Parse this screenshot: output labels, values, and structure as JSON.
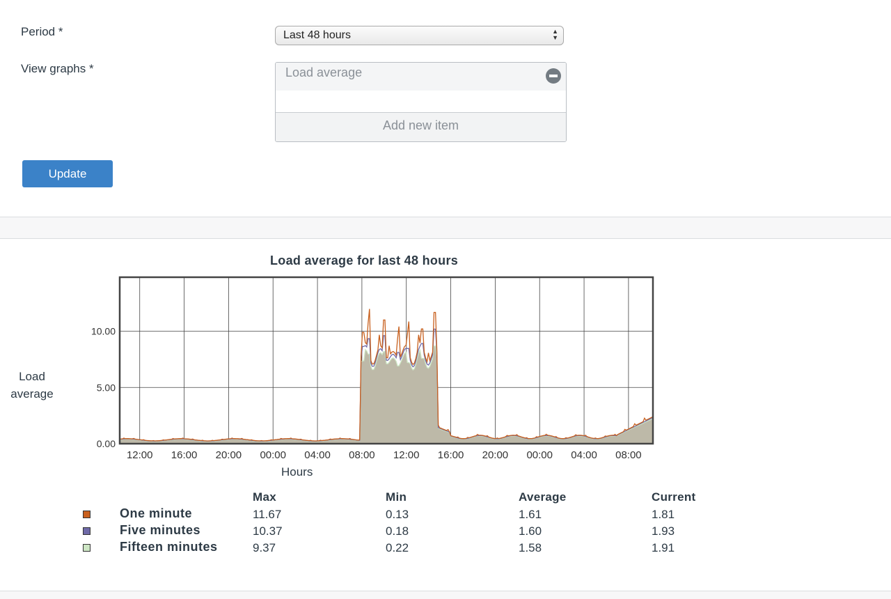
{
  "form": {
    "period_label": "Period *",
    "period_value": "Last 48 hours",
    "view_graphs_label": "View graphs *",
    "graph_items": [
      "Load average"
    ],
    "add_item_label": "Add new item",
    "update_label": "Update"
  },
  "chart_data": {
    "type": "area",
    "title": "Load average for last 48 hours",
    "xlabel": "Hours",
    "ylabel": "Load average",
    "ylim": [
      0,
      14.8
    ],
    "yticks": [
      "0.00",
      "5.00",
      "10.00"
    ],
    "ytick_values": [
      0,
      5,
      10
    ],
    "xticks": [
      "12:00",
      "16:00",
      "20:00",
      "00:00",
      "04:00",
      "08:00",
      "12:00",
      "16:00",
      "20:00",
      "00:00",
      "04:00",
      "08:00"
    ],
    "xlim_hours": [
      10.2,
      58.2
    ],
    "grid": true,
    "series": [
      {
        "name": "One minute",
        "color": "#c8601e",
        "max": "11.67",
        "min": "0.13",
        "average": "1.61",
        "current": "1.81"
      },
      {
        "name": "Five minutes",
        "color": "#6f6aa8",
        "max": "10.37",
        "min": "0.18",
        "average": "1.60",
        "current": "1.93"
      },
      {
        "name": "Fifteen minutes",
        "color": "#cde6c4",
        "max": "9.37",
        "min": "0.22",
        "average": "1.58",
        "current": "1.91"
      }
    ],
    "legend_headers": {
      "max": "Max",
      "min": "Min",
      "average": "Average",
      "current": "Current"
    }
  }
}
